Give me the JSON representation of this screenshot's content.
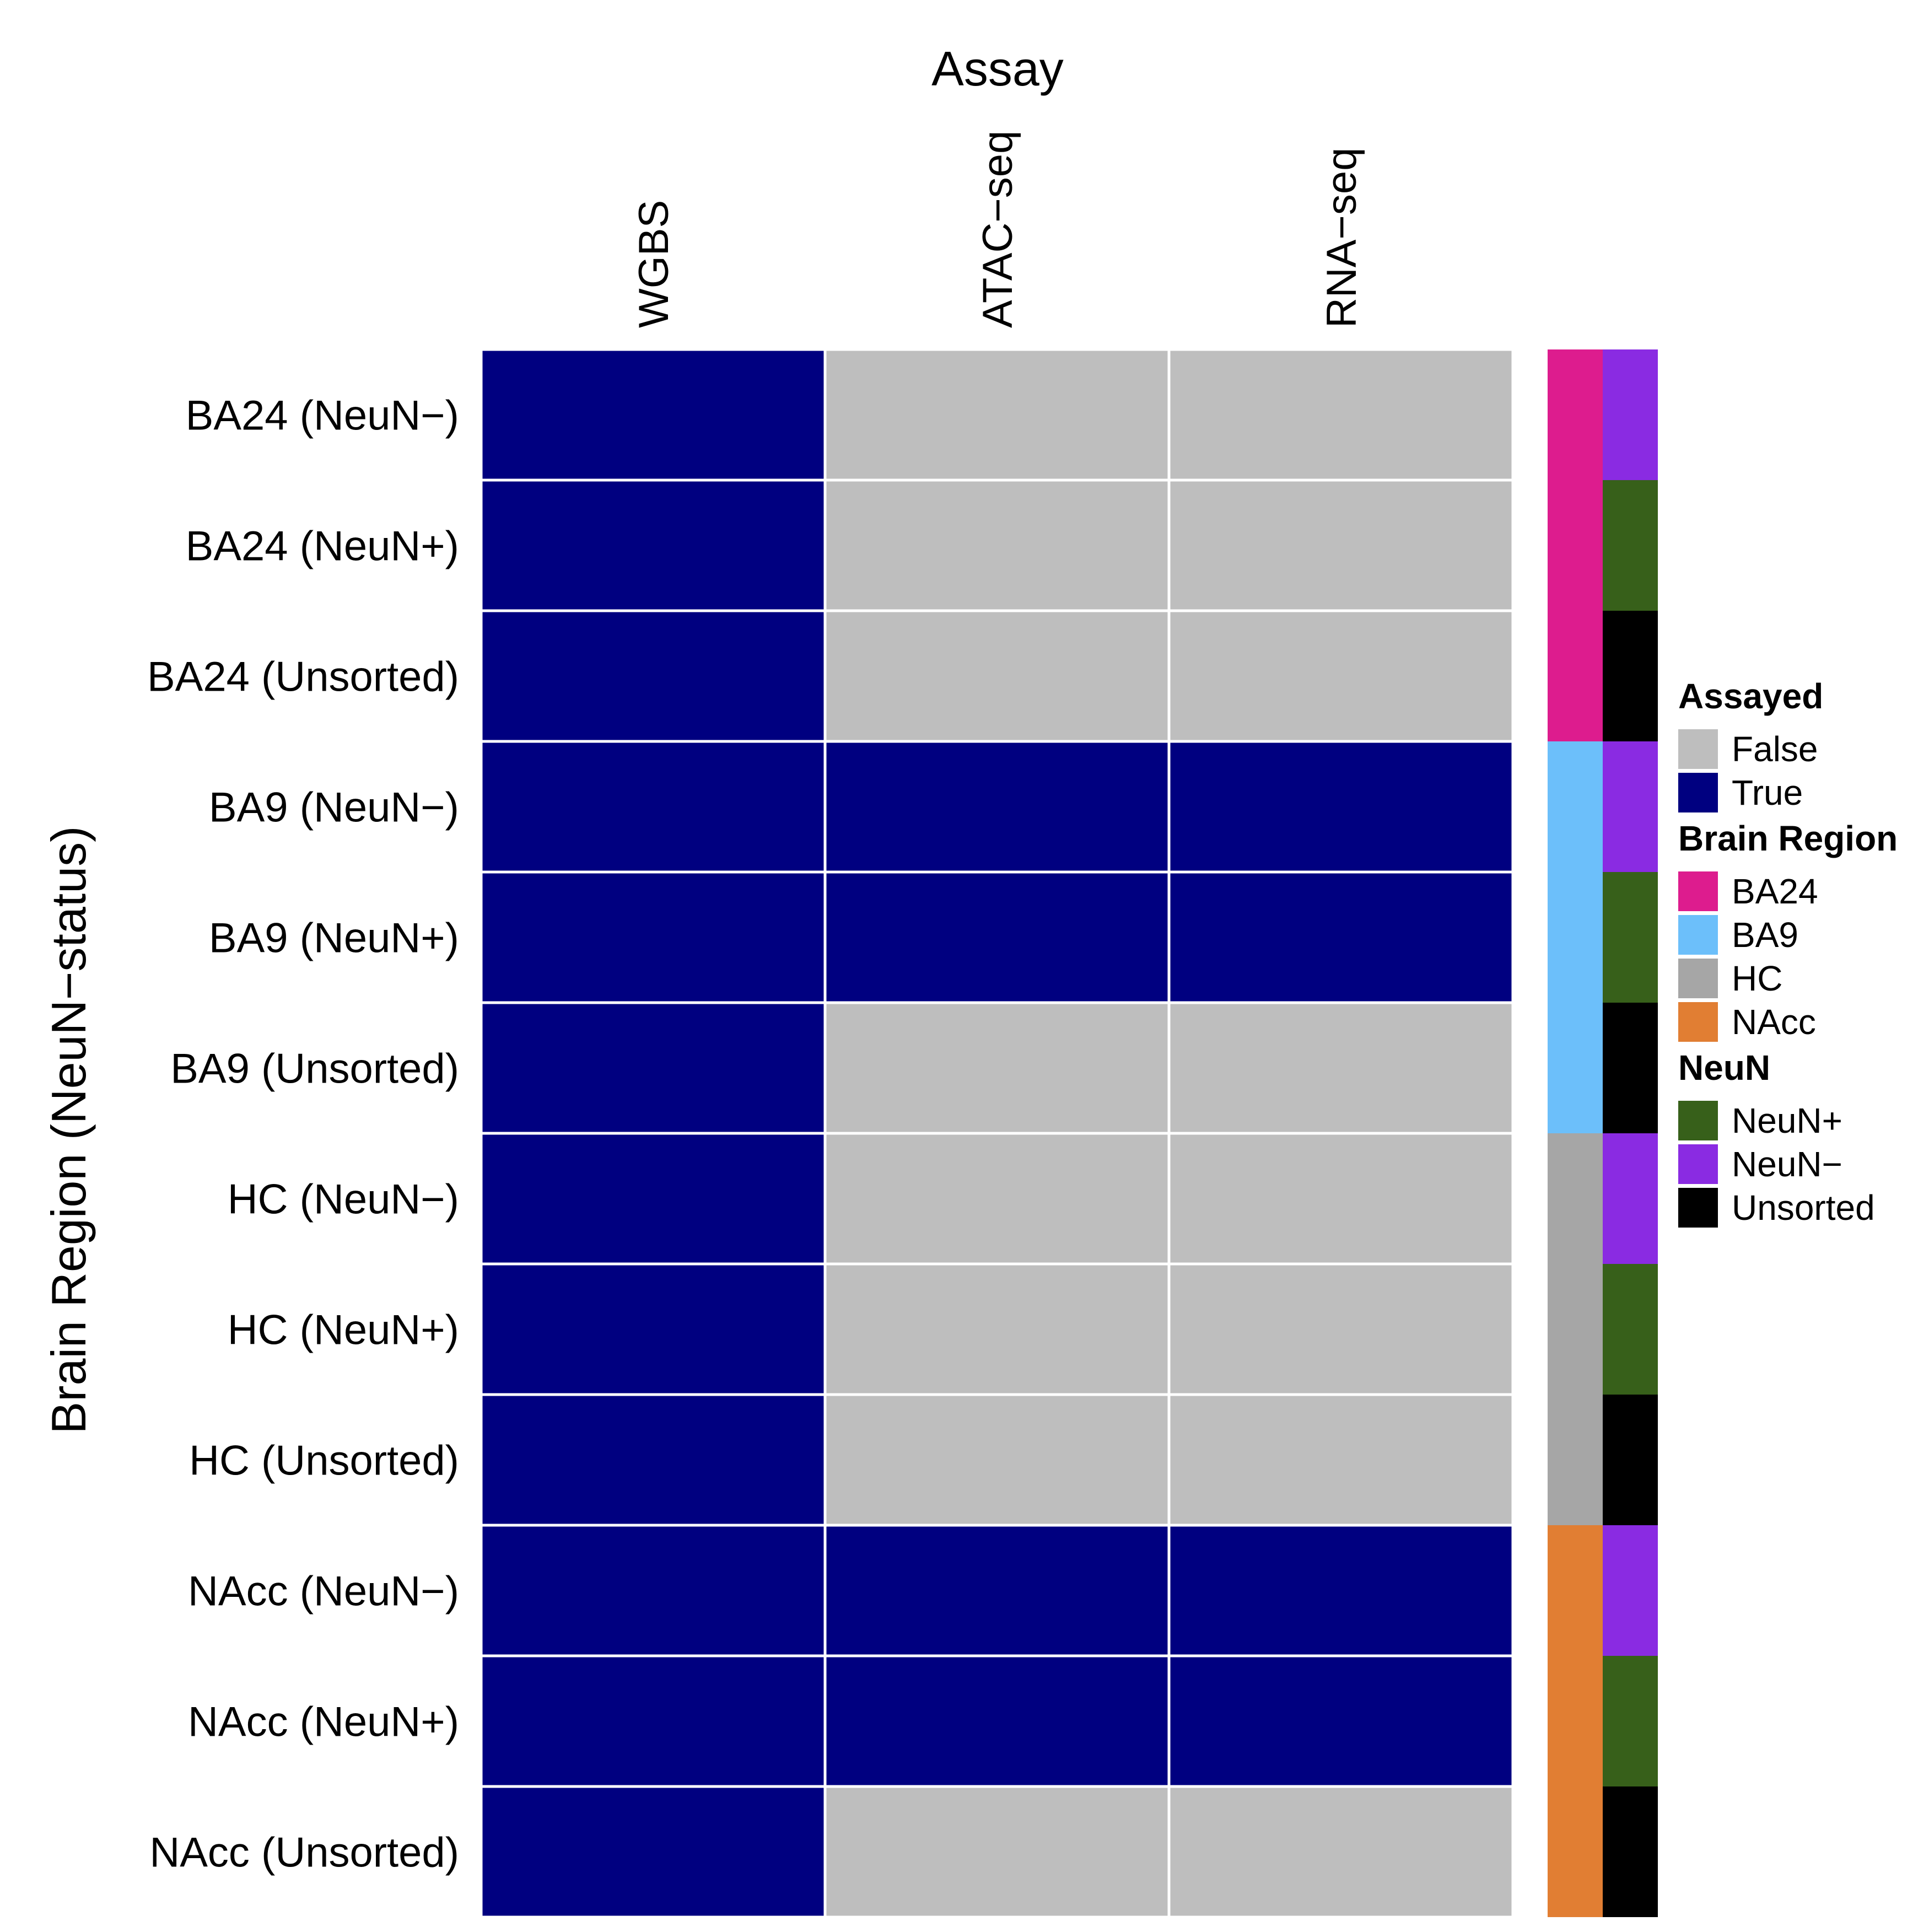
{
  "chart_data": {
    "type": "heatmap",
    "title": "",
    "xlabel": "Assay",
    "ylabel": "Brain Region (NeuN−status)",
    "columns": [
      "WGBS",
      "ATAC−seq",
      "RNA−seq"
    ],
    "rows": [
      {
        "label": "BA24 (NeuN−)",
        "region": "BA24",
        "neun": "NeuN−",
        "values": [
          true,
          false,
          false
        ]
      },
      {
        "label": "BA24 (NeuN+)",
        "region": "BA24",
        "neun": "NeuN+",
        "values": [
          true,
          false,
          false
        ]
      },
      {
        "label": "BA24 (Unsorted)",
        "region": "BA24",
        "neun": "Unsorted",
        "values": [
          true,
          false,
          false
        ]
      },
      {
        "label": "BA9 (NeuN−)",
        "region": "BA9",
        "neun": "NeuN−",
        "values": [
          true,
          true,
          true
        ]
      },
      {
        "label": "BA9 (NeuN+)",
        "region": "BA9",
        "neun": "NeuN+",
        "values": [
          true,
          true,
          true
        ]
      },
      {
        "label": "BA9 (Unsorted)",
        "region": "BA9",
        "neun": "Unsorted",
        "values": [
          true,
          false,
          false
        ]
      },
      {
        "label": "HC (NeuN−)",
        "region": "HC",
        "neun": "NeuN−",
        "values": [
          true,
          false,
          false
        ]
      },
      {
        "label": "HC (NeuN+)",
        "region": "HC",
        "neun": "NeuN+",
        "values": [
          true,
          false,
          false
        ]
      },
      {
        "label": "HC (Unsorted)",
        "region": "HC",
        "neun": "Unsorted",
        "values": [
          true,
          false,
          false
        ]
      },
      {
        "label": "NAcc (NeuN−)",
        "region": "NAcc",
        "neun": "NeuN−",
        "values": [
          true,
          true,
          true
        ]
      },
      {
        "label": "NAcc (NeuN+)",
        "region": "NAcc",
        "neun": "NeuN+",
        "values": [
          true,
          true,
          true
        ]
      },
      {
        "label": "NAcc (Unsorted)",
        "region": "NAcc",
        "neun": "Unsorted",
        "values": [
          true,
          false,
          false
        ]
      }
    ],
    "legend": {
      "position": "right",
      "groups": [
        {
          "title": "Assayed",
          "key": "assayed",
          "items": [
            {
              "label": "False",
              "color": "#bebebe"
            },
            {
              "label": "True",
              "color": "#000080"
            }
          ]
        },
        {
          "title": "Brain Region",
          "key": "region",
          "items": [
            {
              "label": "BA24",
              "color": "#dd1c8e"
            },
            {
              "label": "BA9",
              "color": "#6cbffa"
            },
            {
              "label": "HC",
              "color": "#a6a6a6"
            },
            {
              "label": "NAcc",
              "color": "#e17e33"
            }
          ]
        },
        {
          "title": "NeuN",
          "key": "neun",
          "items": [
            {
              "label": "NeuN+",
              "color": "#37601a"
            },
            {
              "label": "NeuN−",
              "color": "#8a2be2"
            },
            {
              "label": "Unsorted",
              "color": "#000000"
            }
          ]
        }
      ]
    },
    "grid": true
  }
}
